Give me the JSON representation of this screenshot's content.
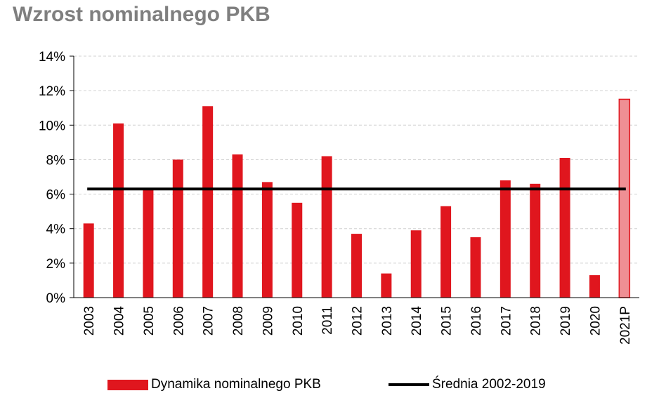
{
  "title": "Wzrost nominalnego PKB",
  "chart_data": {
    "type": "bar",
    "title": "Wzrost nominalnego PKB",
    "categories": [
      "2003",
      "2004",
      "2005",
      "2006",
      "2007",
      "2008",
      "2009",
      "2010",
      "2011",
      "2012",
      "2013",
      "2014",
      "2015",
      "2016",
      "2017",
      "2018",
      "2019",
      "2020",
      "2021P"
    ],
    "series": [
      {
        "name": "Dynamika nominalnego PKB",
        "values": [
          4.3,
          10.1,
          6.3,
          8.0,
          11.1,
          8.3,
          6.7,
          5.5,
          8.2,
          3.7,
          1.4,
          3.9,
          5.3,
          3.5,
          6.8,
          6.6,
          8.1,
          1.3,
          11.5
        ],
        "color": "#e0161e",
        "forecast_color": "#ef8f94",
        "forecast_categories": [
          "2021P"
        ]
      },
      {
        "name": "Średnia 2002-2019",
        "type": "line",
        "value": 6.3,
        "color": "#000000"
      }
    ],
    "yticks": [
      "0%",
      "2%",
      "4%",
      "6%",
      "8%",
      "10%",
      "12%",
      "14%"
    ],
    "ylim": [
      0,
      14
    ],
    "grid": true,
    "legend_position": "bottom"
  },
  "legend": {
    "bar_label": "Dynamika nominalnego PKB",
    "line_label": "Średnia 2002-2019"
  }
}
